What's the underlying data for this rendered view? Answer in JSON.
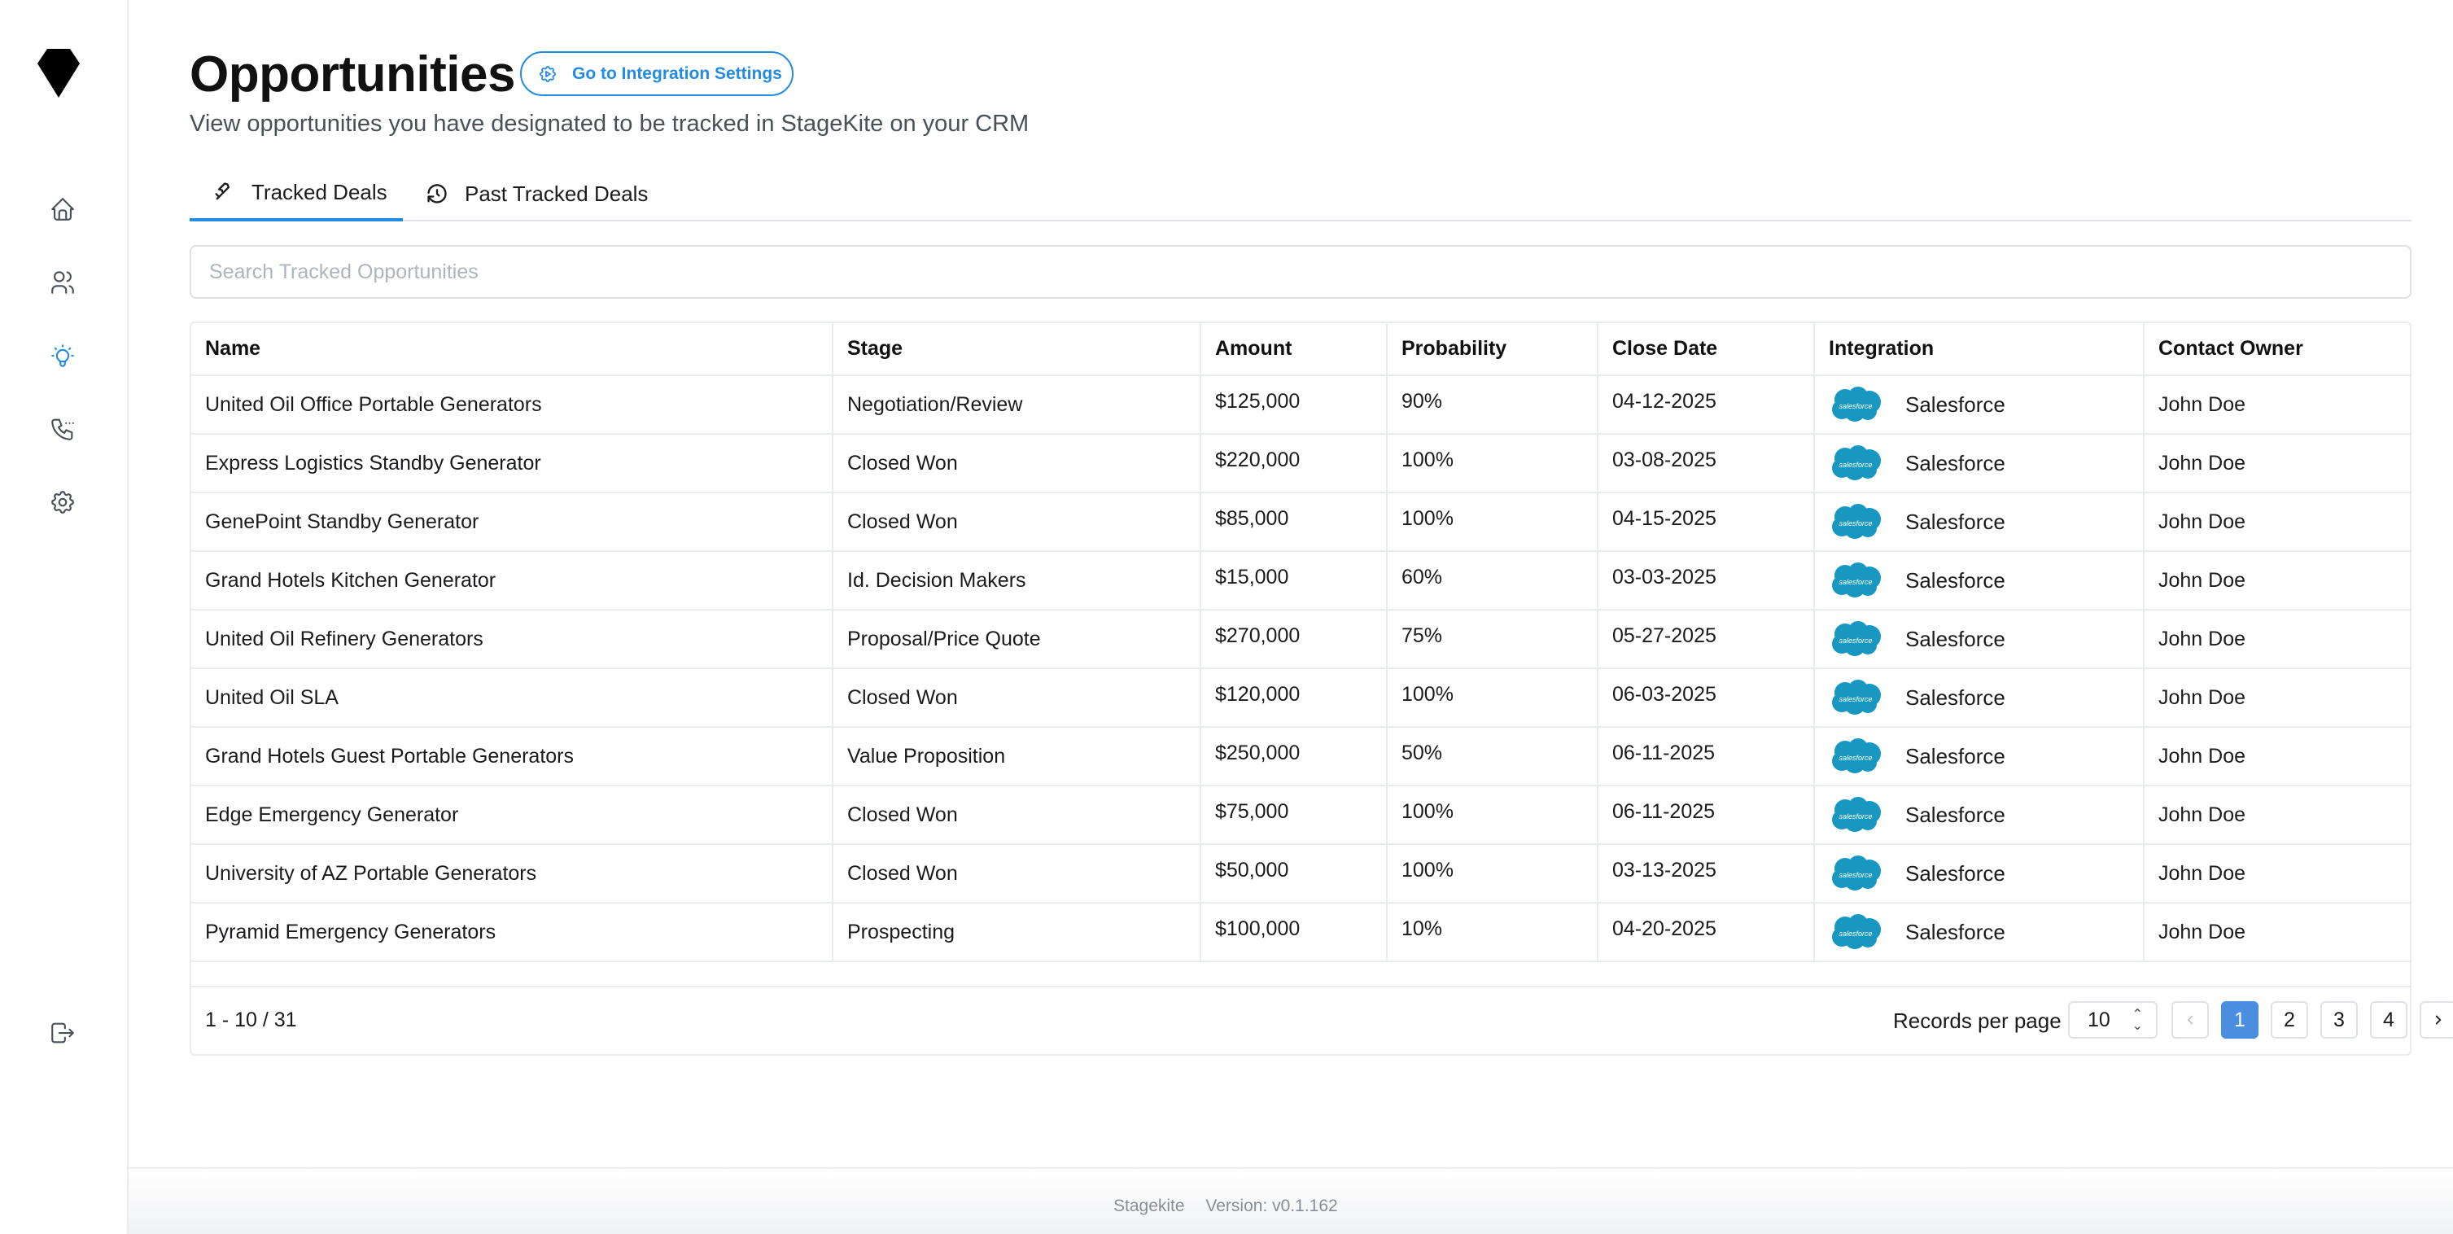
{
  "page": {
    "title": "Opportunities",
    "integration_button": "Go to Integration Settings",
    "subtitle": "View opportunities you have designated to be tracked in StageKite on your CRM"
  },
  "sidebar": {
    "items": [
      {
        "icon": "home-icon"
      },
      {
        "icon": "users-icon"
      },
      {
        "icon": "bulb-icon",
        "active": true
      },
      {
        "icon": "phone-call-icon"
      },
      {
        "icon": "gear-icon"
      }
    ],
    "logout_icon": "logout-icon",
    "accent": "#228be6"
  },
  "tabs": [
    {
      "label": "Tracked Deals",
      "active": true
    },
    {
      "label": "Past Tracked Deals",
      "active": false
    }
  ],
  "search": {
    "placeholder": "Search Tracked Opportunities",
    "value": ""
  },
  "table": {
    "columns": [
      "Name",
      "Stage",
      "Amount",
      "Probability",
      "Close Date",
      "Integration",
      "Contact Owner"
    ],
    "rows": [
      {
        "name": "United Oil Office Portable Generators",
        "stage": "Negotiation/Review",
        "amount": "$125,000",
        "probability": "90%",
        "close_date": "04-12-2025",
        "integration": "Salesforce",
        "owner": "John Doe"
      },
      {
        "name": "Express Logistics Standby Generator",
        "stage": "Closed Won",
        "amount": "$220,000",
        "probability": "100%",
        "close_date": "03-08-2025",
        "integration": "Salesforce",
        "owner": "John Doe"
      },
      {
        "name": "GenePoint Standby Generator",
        "stage": "Closed Won",
        "amount": "$85,000",
        "probability": "100%",
        "close_date": "04-15-2025",
        "integration": "Salesforce",
        "owner": "John Doe"
      },
      {
        "name": "Grand Hotels Kitchen Generator",
        "stage": "Id. Decision Makers",
        "amount": "$15,000",
        "probability": "60%",
        "close_date": "03-03-2025",
        "integration": "Salesforce",
        "owner": "John Doe"
      },
      {
        "name": "United Oil Refinery Generators",
        "stage": "Proposal/Price Quote",
        "amount": "$270,000",
        "probability": "75%",
        "close_date": "05-27-2025",
        "integration": "Salesforce",
        "owner": "John Doe"
      },
      {
        "name": "United Oil SLA",
        "stage": "Closed Won",
        "amount": "$120,000",
        "probability": "100%",
        "close_date": "06-03-2025",
        "integration": "Salesforce",
        "owner": "John Doe"
      },
      {
        "name": "Grand Hotels Guest Portable Generators",
        "stage": "Value Proposition",
        "amount": "$250,000",
        "probability": "50%",
        "close_date": "06-11-2025",
        "integration": "Salesforce",
        "owner": "John Doe"
      },
      {
        "name": "Edge Emergency Generator",
        "stage": "Closed Won",
        "amount": "$75,000",
        "probability": "100%",
        "close_date": "06-11-2025",
        "integration": "Salesforce",
        "owner": "John Doe"
      },
      {
        "name": "University of AZ Portable Generators",
        "stage": "Closed Won",
        "amount": "$50,000",
        "probability": "100%",
        "close_date": "03-13-2025",
        "integration": "Salesforce",
        "owner": "John Doe"
      },
      {
        "name": "Pyramid Emergency Generators",
        "stage": "Prospecting",
        "amount": "$100,000",
        "probability": "10%",
        "close_date": "04-20-2025",
        "integration": "Salesforce",
        "owner": "John Doe"
      }
    ],
    "integration_logo_text": "salesforce",
    "integration_logo_color": "#1798c1"
  },
  "pagination": {
    "range": "1 - 10 / 31",
    "records_per_page_label": "Records per page",
    "records_per_page": "10",
    "pages": [
      "1",
      "2",
      "3",
      "4"
    ],
    "current_page": "1",
    "prev_icon": "chevron-left-icon",
    "next_icon": "chevron-right-icon"
  },
  "footer": {
    "brand": "Stagekite",
    "version": "Version: v0.1.162"
  }
}
